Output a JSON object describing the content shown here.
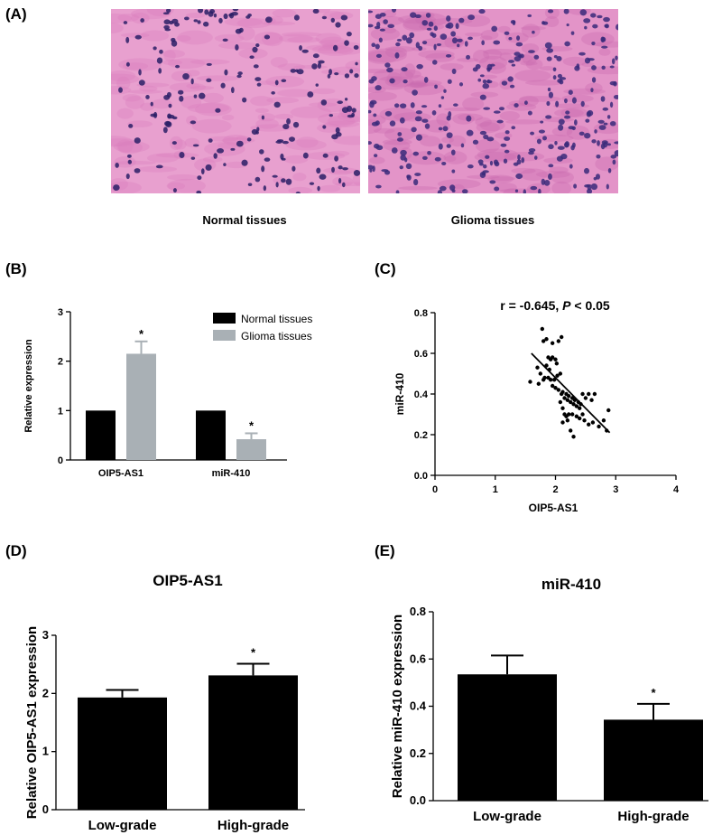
{
  "figure": {
    "panels": [
      "(A)",
      "(B)",
      "(C)",
      "(D)",
      "(E)"
    ],
    "histology": [
      {
        "caption": "Normal tissues",
        "palette": {
          "bg": "#e8a0cf",
          "fiber": "#d97fbd",
          "nuclei": "#2a1f66"
        }
      },
      {
        "caption": "Glioma tissues",
        "palette": {
          "bg": "#e394c8",
          "fiber": "#c96aae",
          "nuclei": "#3a2a7a"
        }
      }
    ]
  },
  "chart_data": [
    {
      "panel": "(B)",
      "type": "bar",
      "categories": [
        "OIP5-AS1",
        "miR-410"
      ],
      "series": [
        {
          "name": "Normal tissues",
          "color": "#000000",
          "values": [
            1.0,
            1.0
          ],
          "errors": [
            0,
            0
          ]
        },
        {
          "name": "Glioma tissues",
          "color": "#a9b0b5",
          "values": [
            2.15,
            0.42
          ],
          "errors": [
            0.25,
            0.12
          ]
        }
      ],
      "significance": [
        "*",
        "*"
      ],
      "ylabel": "Relative expression",
      "ylim": [
        0,
        3
      ],
      "yticks": [
        "0",
        "1",
        "2",
        "3"
      ],
      "legend": "top-right"
    },
    {
      "panel": "(C)",
      "type": "scatter",
      "title_prefix": "r = -0.645, ",
      "title_p": "P",
      "title_suffix": " < 0.05",
      "xlabel": "OIP5-AS1",
      "ylabel": "miR-410",
      "xlim": [
        0,
        4
      ],
      "ylim": [
        0,
        0.8
      ],
      "xticks": [
        "0",
        "1",
        "2",
        "3",
        "4"
      ],
      "yticks": [
        "0.0",
        "0.2",
        "0.4",
        "0.6",
        "0.8"
      ],
      "fit_line": {
        "x1": 1.6,
        "y1": 0.6,
        "x2": 2.9,
        "y2": 0.21
      },
      "points": [
        [
          1.78,
          0.72
        ],
        [
          1.8,
          0.66
        ],
        [
          1.85,
          0.67
        ],
        [
          1.95,
          0.65
        ],
        [
          2.05,
          0.66
        ],
        [
          2.1,
          0.68
        ],
        [
          1.88,
          0.58
        ],
        [
          1.92,
          0.57
        ],
        [
          1.95,
          0.58
        ],
        [
          2.0,
          0.57
        ],
        [
          2.02,
          0.55
        ],
        [
          1.85,
          0.54
        ],
        [
          1.9,
          0.52
        ],
        [
          1.7,
          0.53
        ],
        [
          1.75,
          0.5
        ],
        [
          1.8,
          0.47
        ],
        [
          1.58,
          0.46
        ],
        [
          1.72,
          0.45
        ],
        [
          1.82,
          0.48
        ],
        [
          1.88,
          0.48
        ],
        [
          1.92,
          0.47
        ],
        [
          1.98,
          0.47
        ],
        [
          2.03,
          0.49
        ],
        [
          2.08,
          0.5
        ],
        [
          1.95,
          0.44
        ],
        [
          2.0,
          0.43
        ],
        [
          2.05,
          0.42
        ],
        [
          2.1,
          0.4
        ],
        [
          2.12,
          0.41
        ],
        [
          2.15,
          0.38
        ],
        [
          2.18,
          0.4
        ],
        [
          2.2,
          0.37
        ],
        [
          2.22,
          0.39
        ],
        [
          2.25,
          0.36
        ],
        [
          2.28,
          0.38
        ],
        [
          2.3,
          0.35
        ],
        [
          2.32,
          0.37
        ],
        [
          2.35,
          0.34
        ],
        [
          2.38,
          0.36
        ],
        [
          2.4,
          0.33
        ],
        [
          2.42,
          0.35
        ],
        [
          2.45,
          0.4
        ],
        [
          2.5,
          0.38
        ],
        [
          2.55,
          0.4
        ],
        [
          2.6,
          0.37
        ],
        [
          2.65,
          0.4
        ],
        [
          2.12,
          0.33
        ],
        [
          2.15,
          0.3
        ],
        [
          2.18,
          0.29
        ],
        [
          2.2,
          0.27
        ],
        [
          2.12,
          0.26
        ],
        [
          2.22,
          0.3
        ],
        [
          2.28,
          0.3
        ],
        [
          2.35,
          0.29
        ],
        [
          2.4,
          0.28
        ],
        [
          2.48,
          0.27
        ],
        [
          2.55,
          0.25
        ],
        [
          2.62,
          0.26
        ],
        [
          2.72,
          0.24
        ],
        [
          2.8,
          0.27
        ],
        [
          2.88,
          0.32
        ],
        [
          2.85,
          0.22
        ],
        [
          2.3,
          0.19
        ],
        [
          2.25,
          0.22
        ],
        [
          2.45,
          0.3
        ],
        [
          2.08,
          0.36
        ]
      ]
    },
    {
      "panel": "(D)",
      "type": "bar",
      "title": "OIP5-AS1",
      "categories": [
        "Low-grade",
        "High-grade"
      ],
      "values": [
        1.93,
        2.31
      ],
      "errors": [
        0.13,
        0.2
      ],
      "significance": [
        "",
        "*"
      ],
      "ylabel": "Relative OIP5-AS1 expression",
      "ylim": [
        0,
        3
      ],
      "yticks": [
        "0",
        "1",
        "2",
        "3"
      ],
      "color": "#000000"
    },
    {
      "panel": "(E)",
      "type": "bar",
      "title": "miR-410",
      "categories": [
        "Low-grade",
        "High-grade"
      ],
      "values": [
        0.535,
        0.343
      ],
      "errors": [
        0.08,
        0.067
      ],
      "significance": [
        "",
        "*"
      ],
      "ylabel": "Relative miR-410 expression",
      "ylim": [
        0,
        0.8
      ],
      "yticks": [
        "0.0",
        "0.2",
        "0.4",
        "0.6",
        "0.8"
      ],
      "color": "#000000"
    }
  ]
}
